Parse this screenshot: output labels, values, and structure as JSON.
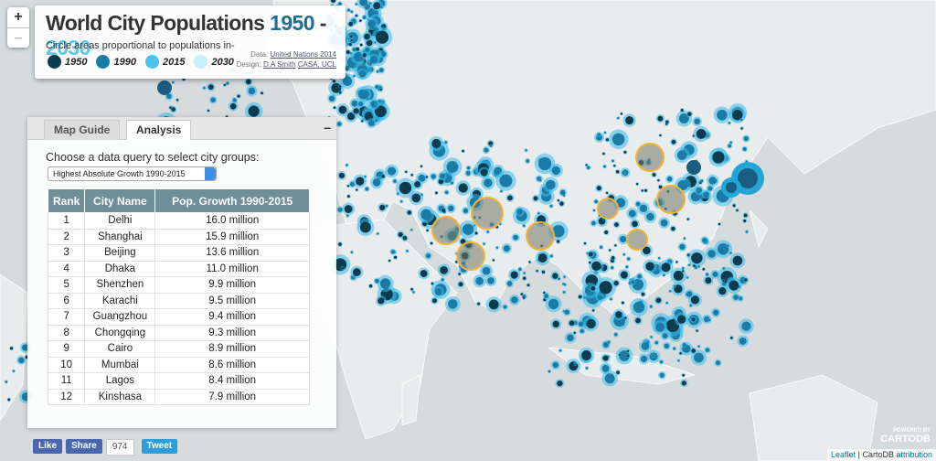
{
  "header": {
    "title": "World City Populations",
    "year_start": "1950",
    "separator": "-",
    "year_end": "2030",
    "subtitle": "Circle areas proportional to populations in-",
    "legend": [
      "1950",
      "1990",
      "2015",
      "2030"
    ],
    "credits": {
      "data_label": "Data:",
      "data_source": "United Nations 2014",
      "design_label": "Design:",
      "designer": "D.A Smith",
      "institution": "CASA, UCL"
    }
  },
  "zoom": {
    "in": "+",
    "out": "–"
  },
  "panel": {
    "tabs": [
      "Map Guide",
      "Analysis"
    ],
    "collapse": "–",
    "prompt": "Choose a data query to select city groups:",
    "query": "Highest Absolute Growth 1990-2015",
    "table": {
      "columns": [
        "Rank",
        "City Name",
        "Pop. Growth 1990-2015"
      ],
      "rows": [
        [
          1,
          "Delhi",
          "16.0 million"
        ],
        [
          2,
          "Shanghai",
          "15.9 million"
        ],
        [
          3,
          "Beijing",
          "13.6 million"
        ],
        [
          4,
          "Dhaka",
          "11.0 million"
        ],
        [
          5,
          "Shenzhen",
          "9.9 million"
        ],
        [
          6,
          "Karachi",
          "9.5 million"
        ],
        [
          7,
          "Guangzhou",
          "9.4 million"
        ],
        [
          8,
          "Chongqing",
          "9.3 million"
        ],
        [
          9,
          "Cairo",
          "8.9 million"
        ],
        [
          10,
          "Mumbai",
          "8.6 million"
        ],
        [
          11,
          "Lagos",
          "8.4 million"
        ],
        [
          12,
          "Kinshasa",
          "7.9 million"
        ]
      ]
    }
  },
  "share": {
    "like": "Like",
    "share": "Share",
    "count": "974",
    "tweet": "Tweet"
  },
  "attribution": {
    "leaflet": "Leaflet",
    "separator": "|",
    "cartodb": "CartoDB",
    "link": "attribution",
    "powered": "POWERED BY",
    "logo": "CARTODB"
  }
}
